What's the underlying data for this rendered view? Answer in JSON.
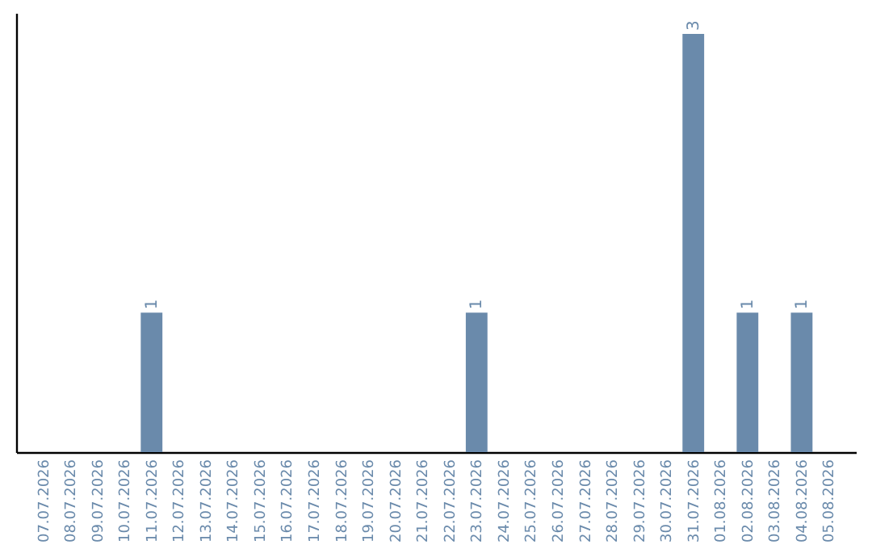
{
  "chart_data": {
    "type": "bar",
    "categories": [
      "07.07.2026",
      "08.07.2026",
      "09.07.2026",
      "10.07.2026",
      "11.07.2026",
      "12.07.2026",
      "13.07.2026",
      "14.07.2026",
      "15.07.2026",
      "16.07.2026",
      "17.07.2026",
      "18.07.2026",
      "19.07.2026",
      "20.07.2026",
      "21.07.2026",
      "22.07.2026",
      "23.07.2026",
      "24.07.2026",
      "25.07.2026",
      "26.07.2026",
      "27.07.2026",
      "28.07.2026",
      "29.07.2026",
      "30.07.2026",
      "31.07.2026",
      "01.08.2026",
      "02.08.2026",
      "03.08.2026",
      "04.08.2026",
      "05.08.2026"
    ],
    "values": [
      0,
      0,
      0,
      0,
      1,
      0,
      0,
      0,
      0,
      0,
      0,
      0,
      0,
      0,
      0,
      0,
      1,
      0,
      0,
      0,
      0,
      0,
      0,
      0,
      3,
      0,
      1,
      0,
      1,
      0
    ],
    "value_labels": [
      null,
      null,
      null,
      null,
      "1",
      null,
      null,
      null,
      null,
      null,
      null,
      null,
      null,
      null,
      null,
      null,
      "1",
      null,
      null,
      null,
      null,
      null,
      null,
      null,
      "3",
      null,
      "1",
      null,
      "1",
      null
    ],
    "color": "#6a8aab",
    "ylim": [
      0,
      3.15
    ],
    "tick_labels": "x"
  }
}
